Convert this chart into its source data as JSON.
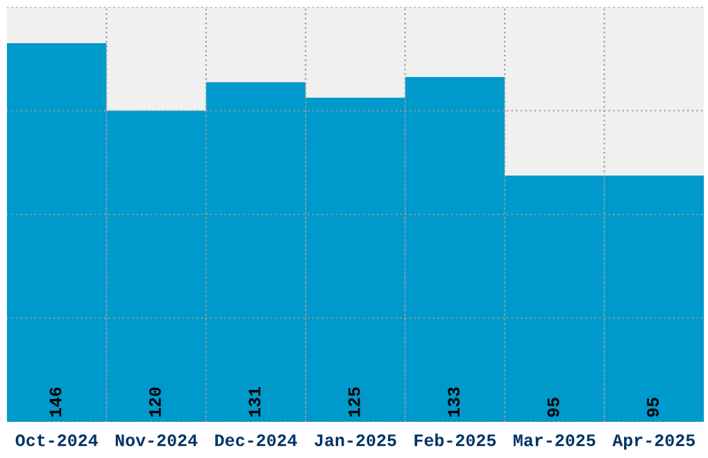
{
  "chart_data": {
    "type": "bar",
    "categories": [
      "Oct-2024",
      "Nov-2024",
      "Dec-2024",
      "Jan-2025",
      "Feb-2025",
      "Mar-2025",
      "Apr-2025"
    ],
    "values": [
      146,
      120,
      131,
      125,
      133,
      95,
      95
    ],
    "color": "#0099cc",
    "ylim": [
      0,
      160
    ],
    "yticks": [
      {
        "value": 0,
        "label": null
      },
      {
        "value": 40,
        "label": null
      },
      {
        "value": 80,
        "label": null
      },
      {
        "value": 120,
        "label": null
      },
      {
        "value": 160,
        "label": null
      }
    ],
    "tick_labels": "x",
    "grid": true,
    "data_labels": true
  }
}
